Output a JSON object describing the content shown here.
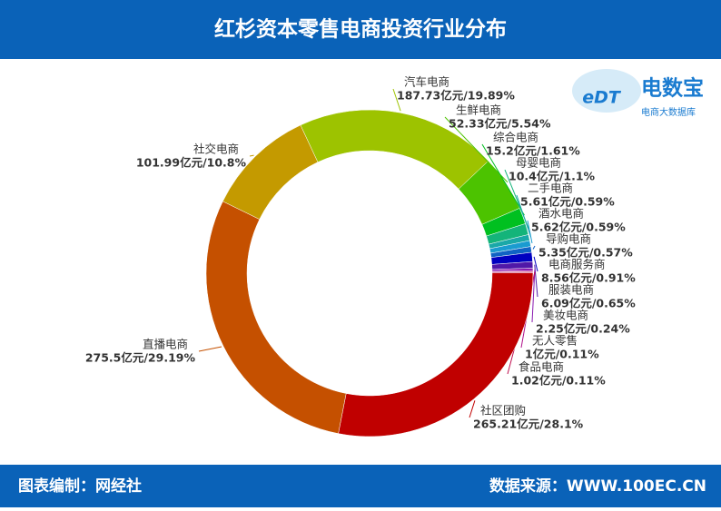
{
  "chart_data": {
    "type": "donut",
    "title": "红杉资本零售电商投资行业分布",
    "categories": [
      "汽车电商",
      "生鲜电商",
      "综合电商",
      "母婴电商",
      "二手电商",
      "酒水电商",
      "导购电商",
      "电商服务商",
      "服装电商",
      "美妆电商",
      "无人零售",
      "食品电商",
      "社区团购",
      "直播电商",
      "社交电商"
    ],
    "values": [
      187.73,
      52.33,
      15.2,
      10.4,
      5.61,
      5.62,
      5.35,
      8.56,
      6.09,
      2.25,
      1,
      1.02,
      265.21,
      275.5,
      101.99
    ],
    "value_labels": [
      "187.73亿元/19.89%",
      "52.33亿元/5.54%",
      "15.2亿元/1.61%",
      "10.4亿元/1.1%",
      "5.61亿元/0.59%",
      "5.62亿元/0.59%",
      "5.35亿元/0.57%",
      "8.56亿元/0.91%",
      "6.09亿元/0.65%",
      "2.25亿元/0.24%",
      "1亿元/0.11%",
      "1.02亿元/0.11%",
      "265.21亿元/28.1%",
      "275.5亿元/29.19%",
      "101.99亿元/10.8%"
    ],
    "colors": [
      "#9dc300",
      "#4cc300",
      "#00c020",
      "#14b47a",
      "#1aa8a8",
      "#1a9bd0",
      "#1063c4",
      "#0000c0",
      "#5018a8",
      "#8a1ab0",
      "#b0108a",
      "#c01050",
      "#c00000",
      "#c55000",
      "#c49a00"
    ]
  },
  "logo": {
    "icon": "eDT",
    "name": "电数宝",
    "tagline": "电商大数据库"
  },
  "footer": {
    "left": "图表编制：网经社",
    "right": "数据来源：WWW.100EC.CN"
  }
}
